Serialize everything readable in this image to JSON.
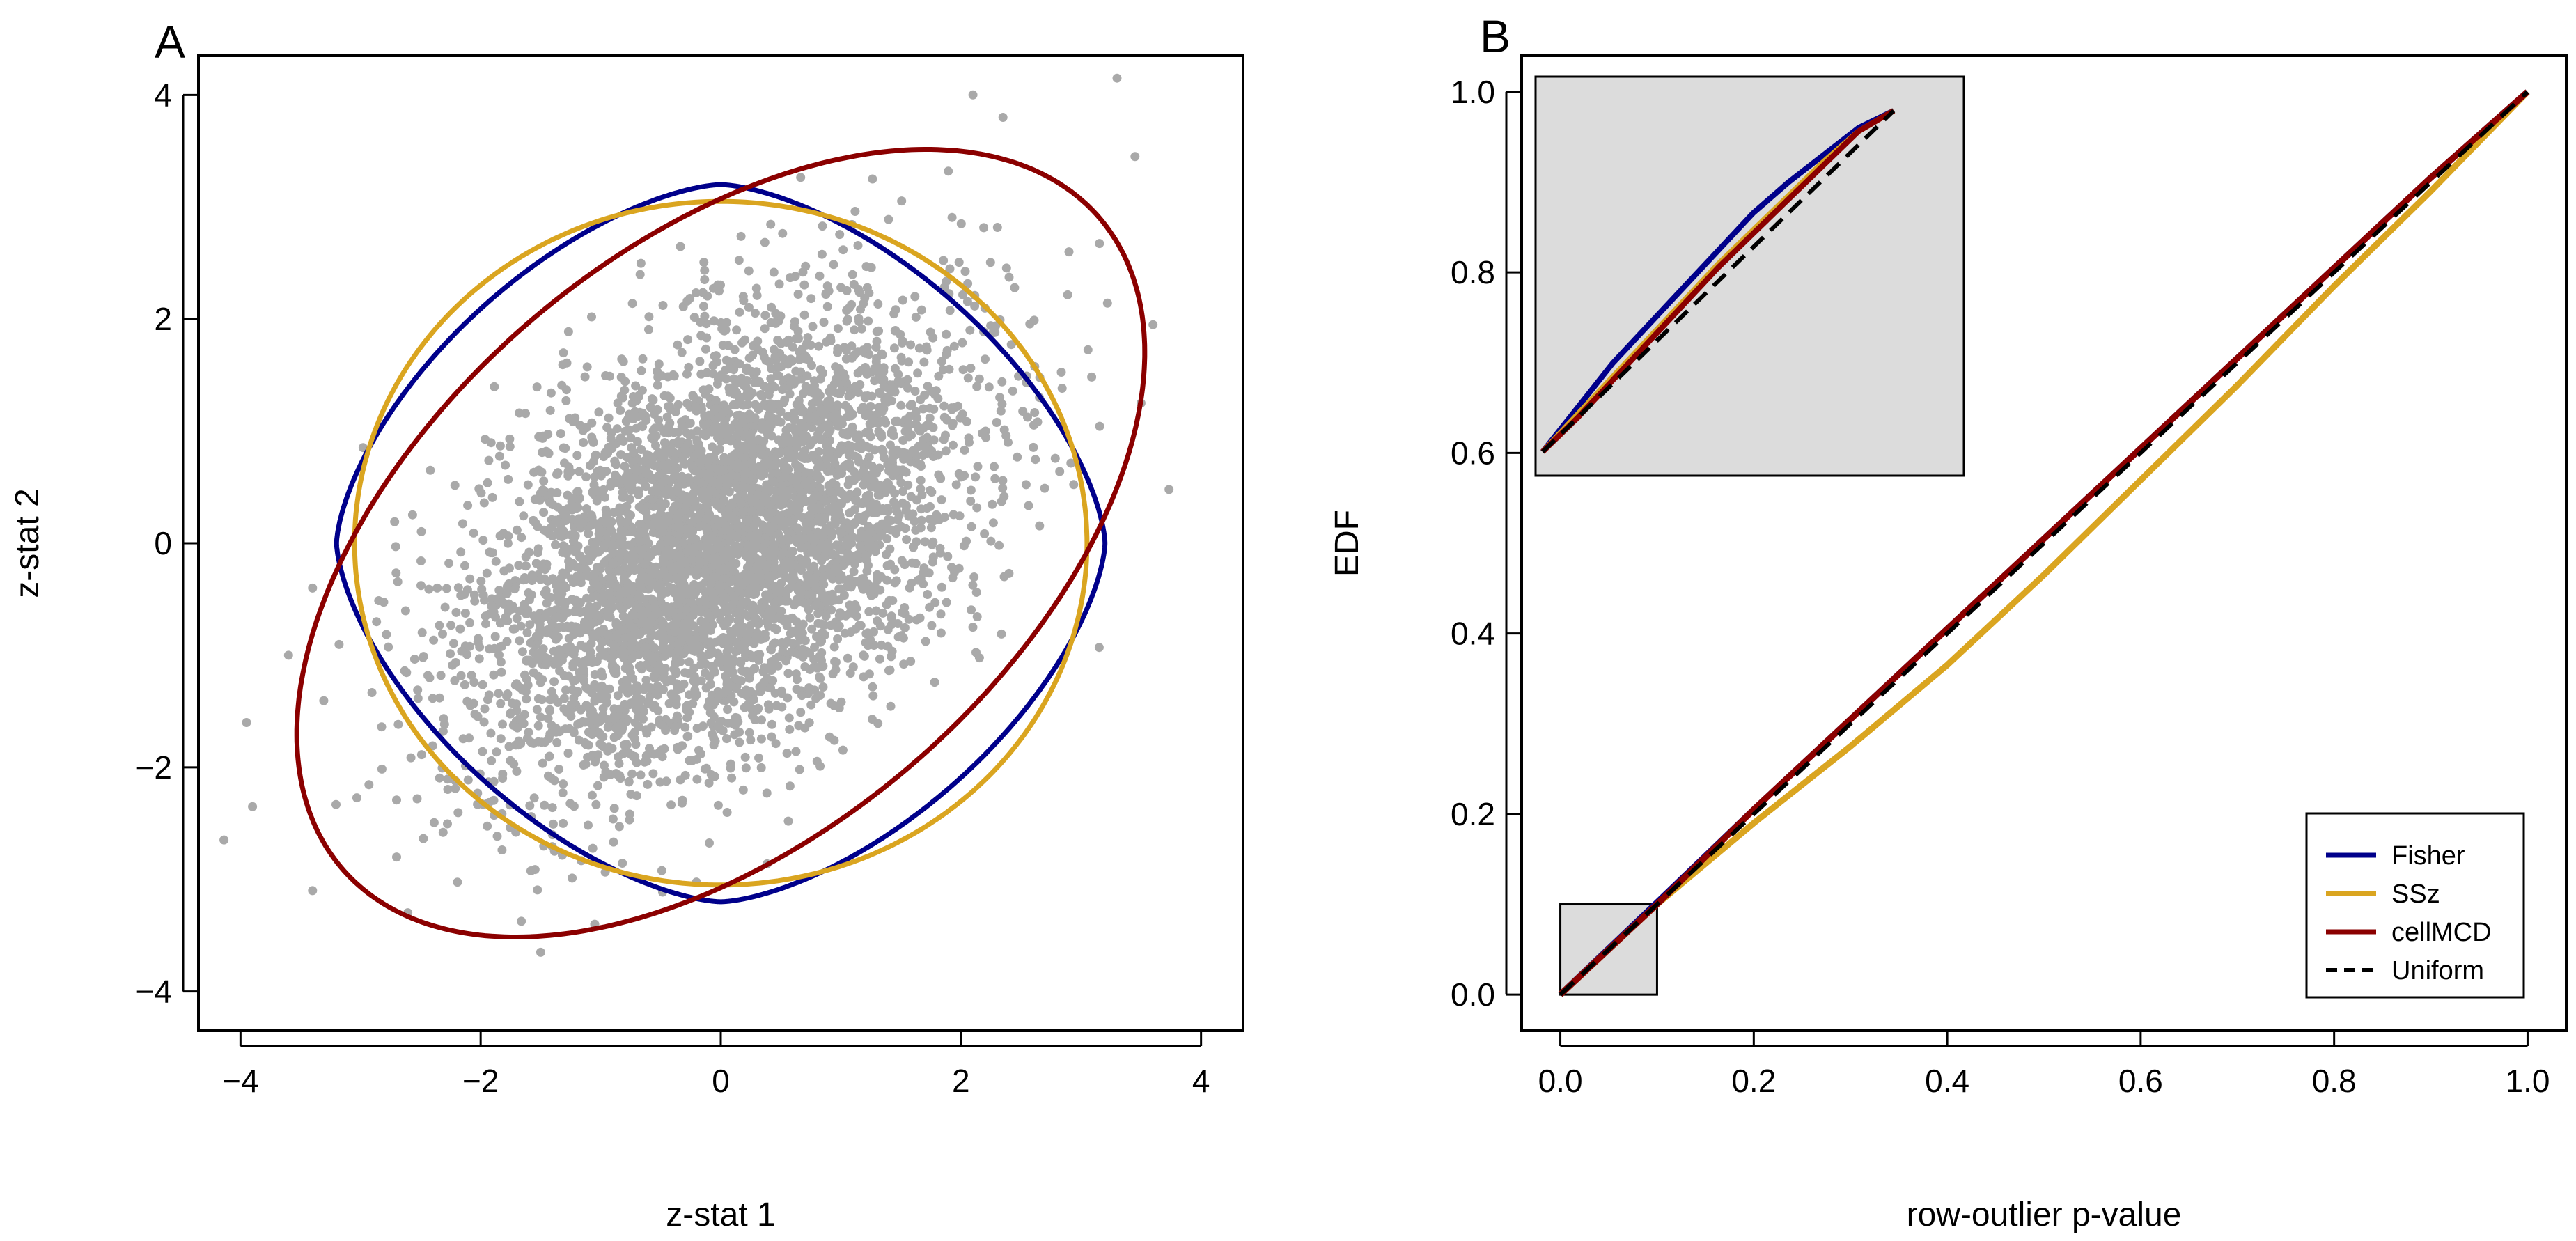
{
  "chart_data": [
    {
      "panel": "A",
      "type": "scatter",
      "xlabel": "z-stat 1",
      "ylabel": "z-stat 2",
      "xlim": [
        -4.35,
        4.35
      ],
      "ylim": [
        -4.35,
        4.35
      ],
      "xticks": [
        -4,
        -2,
        0,
        2,
        4
      ],
      "yticks": [
        -4,
        -2,
        0,
        2,
        4
      ],
      "xtick_labels": [
        "−4",
        "−2",
        "0",
        "2",
        "4"
      ],
      "ytick_labels": [
        "−4",
        "−2",
        "0",
        "2",
        "4"
      ],
      "points": {
        "color": "#a9a9a9",
        "n": 5000,
        "correlation": 0.45,
        "outliers": [
          [
            3.3,
            4.15
          ],
          [
            3.45,
            3.45
          ],
          [
            2.1,
            4.0
          ],
          [
            2.35,
            3.8
          ],
          [
            -3.95,
            -1.6
          ],
          [
            -3.9,
            -2.35
          ],
          [
            -3.4,
            -3.1
          ],
          [
            -1.5,
            -3.65
          ],
          [
            -1.05,
            -3.4
          ],
          [
            3.6,
            1.95
          ],
          [
            3.5,
            1.25
          ],
          [
            -3.4,
            -0.4
          ],
          [
            -3.6,
            -1.0
          ],
          [
            -2.7,
            -2.8
          ],
          [
            2.9,
            2.6
          ]
        ]
      },
      "curves": [
        {
          "name": "Fisher",
          "color": "#00008b",
          "shape": "rounded-diamond",
          "x_radius": 3.2,
          "y_radius": 3.2
        },
        {
          "name": "SSz",
          "color": "#daa520",
          "shape": "circle",
          "radius": 3.05
        },
        {
          "name": "cellMCD",
          "color": "#8b0000",
          "shape": "rotated-ellipse",
          "center": [
            0,
            0
          ],
          "corner_points": [
            [
              3.05,
              3.02
            ],
            [
              -3.05,
              -3.02
            ]
          ],
          "height_at_x0": 1.66
        }
      ]
    },
    {
      "panel": "B",
      "type": "line",
      "xlabel": "row-outlier p-value",
      "ylabel": "EDF",
      "xlim": [
        -0.04,
        1.04
      ],
      "ylim": [
        -0.04,
        1.04
      ],
      "xticks": [
        0.0,
        0.2,
        0.4,
        0.6,
        0.8,
        1.0
      ],
      "yticks": [
        0.0,
        0.2,
        0.4,
        0.6,
        0.8,
        1.0
      ],
      "xtick_labels": [
        "0.0",
        "0.2",
        "0.4",
        "0.6",
        "0.8",
        "1.0"
      ],
      "ytick_labels": [
        "0.0",
        "0.2",
        "0.4",
        "0.6",
        "0.8",
        "1.0"
      ],
      "series": [
        {
          "name": "Fisher",
          "color": "#00008b",
          "dash": false,
          "x": [
            0,
            0.1,
            0.2,
            0.3,
            0.4,
            0.5,
            0.6,
            0.7,
            0.8,
            0.9,
            1.0
          ],
          "y": [
            0,
            0.102,
            0.205,
            0.305,
            0.405,
            0.505,
            0.605,
            0.705,
            0.805,
            0.905,
            1.0
          ]
        },
        {
          "name": "SSz",
          "color": "#daa520",
          "dash": false,
          "x": [
            0,
            0.1,
            0.2,
            0.3,
            0.4,
            0.5,
            0.6,
            0.7,
            0.8,
            0.9,
            1.0
          ],
          "y": [
            0,
            0.1,
            0.19,
            0.275,
            0.365,
            0.465,
            0.57,
            0.675,
            0.785,
            0.89,
            1.0
          ]
        },
        {
          "name": "cellMCD",
          "color": "#8b0000",
          "dash": false,
          "x": [
            0,
            0.1,
            0.2,
            0.3,
            0.4,
            0.5,
            0.6,
            0.7,
            0.8,
            0.9,
            1.0
          ],
          "y": [
            0,
            0.1,
            0.205,
            0.305,
            0.405,
            0.505,
            0.605,
            0.705,
            0.805,
            0.905,
            1.0
          ]
        },
        {
          "name": "Uniform",
          "color": "#000000",
          "dash": true,
          "x": [
            0,
            1.0
          ],
          "y": [
            0,
            1.0
          ]
        }
      ],
      "zoom_box": {
        "xlim": [
          0,
          0.1
        ],
        "ylim": [
          0,
          0.1
        ],
        "fill": "#dcdcdc"
      },
      "inset": {
        "fill": "#dcdcdc",
        "xlim": [
          0,
          0.1
        ],
        "ylim": [
          0,
          0.1
        ],
        "series": [
          {
            "name": "Fisher",
            "color": "#00008b",
            "dash": false,
            "x": [
              0,
              0.01,
              0.02,
              0.03,
              0.04,
              0.05,
              0.06,
              0.07,
              0.08,
              0.09,
              0.1
            ],
            "y": [
              0,
              0.013,
              0.026,
              0.037,
              0.048,
              0.059,
              0.07,
              0.079,
              0.087,
              0.095,
              0.1
            ]
          },
          {
            "name": "SSz",
            "color": "#daa520",
            "dash": false,
            "x": [
              0,
              0.01,
              0.02,
              0.03,
              0.04,
              0.05,
              0.06,
              0.07,
              0.08,
              0.09,
              0.1
            ],
            "y": [
              0,
              0.011,
              0.022,
              0.033,
              0.044,
              0.055,
              0.065,
              0.075,
              0.085,
              0.094,
              0.1
            ]
          },
          {
            "name": "cellMCD",
            "color": "#8b0000",
            "dash": false,
            "x": [
              0,
              0.01,
              0.02,
              0.03,
              0.04,
              0.05,
              0.06,
              0.07,
              0.08,
              0.09,
              0.1
            ],
            "y": [
              0,
              0.01,
              0.021,
              0.032,
              0.043,
              0.054,
              0.064,
              0.074,
              0.084,
              0.094,
              0.1
            ]
          },
          {
            "name": "Uniform",
            "color": "#000000",
            "dash": true,
            "x": [
              0,
              0.1
            ],
            "y": [
              0,
              0.1
            ]
          }
        ]
      },
      "legend": {
        "placement": "bottom-right",
        "entries": [
          {
            "label": "Fisher",
            "color": "#00008b",
            "dash": false
          },
          {
            "label": "SSz",
            "color": "#daa520",
            "dash": false
          },
          {
            "label": "cellMCD",
            "color": "#8b0000",
            "dash": false
          },
          {
            "label": "Uniform",
            "color": "#000000",
            "dash": true
          }
        ]
      }
    }
  ]
}
